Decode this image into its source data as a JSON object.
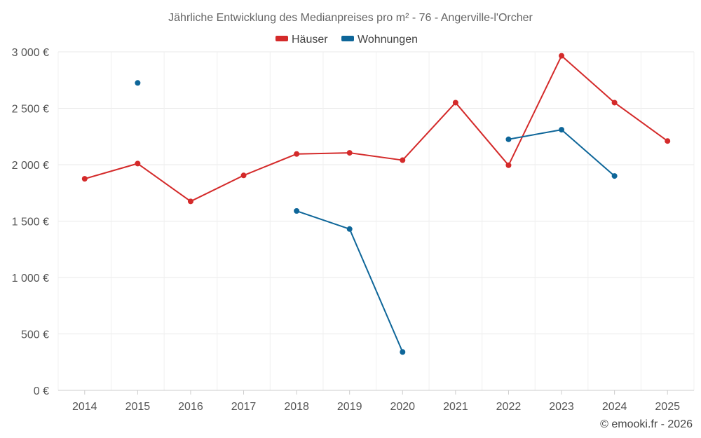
{
  "chart_data": {
    "type": "line",
    "title": "Jährliche Entwicklung des Medianpreises pro m² - 76 - Angerville-l'Orcher",
    "categories": [
      "2014",
      "2015",
      "2016",
      "2017",
      "2018",
      "2019",
      "2020",
      "2021",
      "2022",
      "2023",
      "2024",
      "2025"
    ],
    "ylim": [
      0,
      3000
    ],
    "yticks": [
      0,
      500,
      1000,
      1500,
      2000,
      2500,
      3000
    ],
    "ytick_labels": [
      "0 €",
      "500 €",
      "1 000 €",
      "1 500 €",
      "2 000 €",
      "2 500 €",
      "3 000 €"
    ],
    "grid": true,
    "legend_position": "top-center",
    "series": [
      {
        "name": "Häuser",
        "color": "#d42a2a",
        "values": [
          1875,
          2010,
          1675,
          1905,
          2095,
          2105,
          2040,
          2550,
          1995,
          2965,
          2550,
          2210
        ]
      },
      {
        "name": "Wohnungen",
        "color": "#0e6699",
        "values": [
          null,
          2725,
          null,
          null,
          1590,
          1430,
          340,
          null,
          2225,
          2310,
          1900,
          null
        ]
      }
    ]
  },
  "credit": "© emooki.fr - 2026"
}
